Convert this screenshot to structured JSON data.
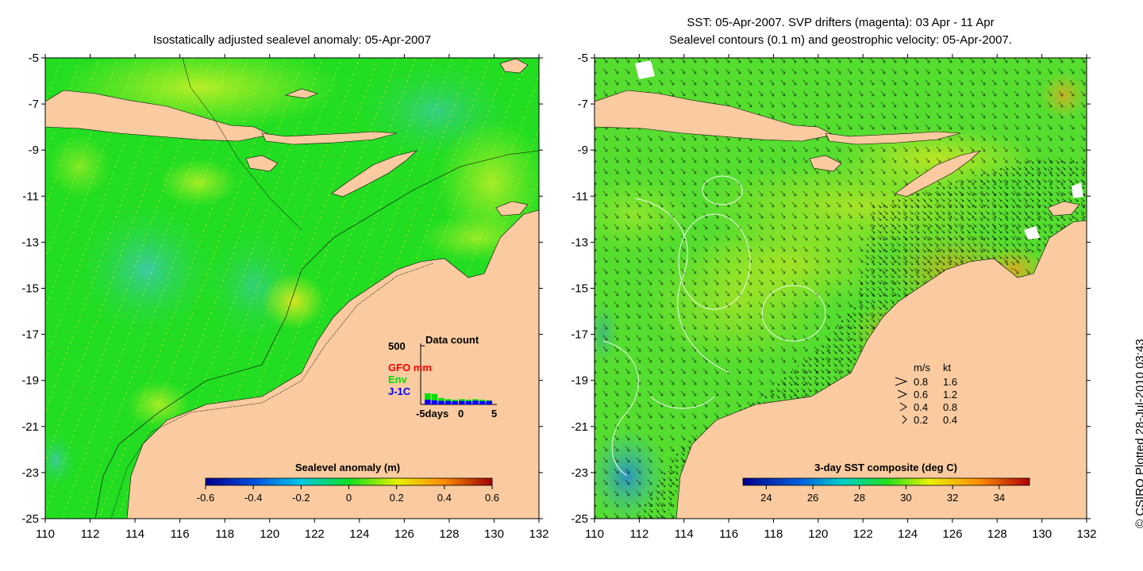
{
  "left_panel": {
    "title": "Isostatically adjusted sealevel anomaly: 05-Apr-2007",
    "colorbar": {
      "label": "Sealevel anomaly (m)",
      "ticks": [
        "-0.6",
        "-0.4",
        "-0.2",
        "0",
        "0.2",
        "0.4",
        "0.6"
      ]
    },
    "data_count": {
      "title": "Data count",
      "ymax_label": "500",
      "series": [
        {
          "name": "GFO mm",
          "color": "#ff0000"
        },
        {
          "name": "Env",
          "color": "#00e000"
        },
        {
          "name": "J-1C",
          "color": "#0000ff"
        }
      ],
      "x_ticks": [
        "-5days",
        "0",
        "5"
      ],
      "values": {
        "total": [
          95,
          90,
          55,
          45,
          40,
          45,
          40,
          45,
          40,
          35
        ],
        "blue": [
          40,
          35,
          30,
          30,
          28,
          30,
          28,
          32,
          28,
          30
        ],
        "green": [
          55,
          55,
          25,
          15,
          12,
          15,
          12,
          13,
          12,
          5
        ]
      }
    }
  },
  "right_panel": {
    "title_line1": "SST: 05-Apr-2007. SVP drifters (magenta): 03 Apr - 11 Apr",
    "title_line2": "Sealevel contours (0.1 m) and geostrophic velocity: 05-Apr-2007.",
    "colorbar": {
      "label": "3-day SST composite (deg C)",
      "ticks": [
        "24",
        "26",
        "28",
        "30",
        "32",
        "34"
      ]
    },
    "velocity_legend": {
      "header_ms": "m/s",
      "header_kt": "kt",
      "rows": [
        {
          "ms": "0.8",
          "kt": "1.6"
        },
        {
          "ms": "0.6",
          "kt": "1.2"
        },
        {
          "ms": "0.4",
          "kt": "0.8"
        },
        {
          "ms": "0.2",
          "kt": "0.4"
        }
      ]
    }
  },
  "axes": {
    "y_ticks": [
      "-5",
      "-7",
      "-9",
      "-11",
      "-13",
      "-15",
      "-17",
      "-19",
      "-21",
      "-23",
      "-25"
    ],
    "x_ticks": [
      "110",
      "112",
      "114",
      "116",
      "118",
      "120",
      "122",
      "124",
      "126",
      "128",
      "130",
      "132"
    ],
    "lat_range": [
      -25,
      -5
    ],
    "lon_range": [
      110,
      132
    ]
  },
  "credit": "© CSIRO Plotted 28-Jul-2010 03:43",
  "colors": {
    "land": "#facba0",
    "sea_base": "#22dd22",
    "sea_lime": "#a8f028",
    "sea_teal": "#30c8a0",
    "sst_green": "#66e030",
    "sst_yellow": "#e0f020"
  }
}
